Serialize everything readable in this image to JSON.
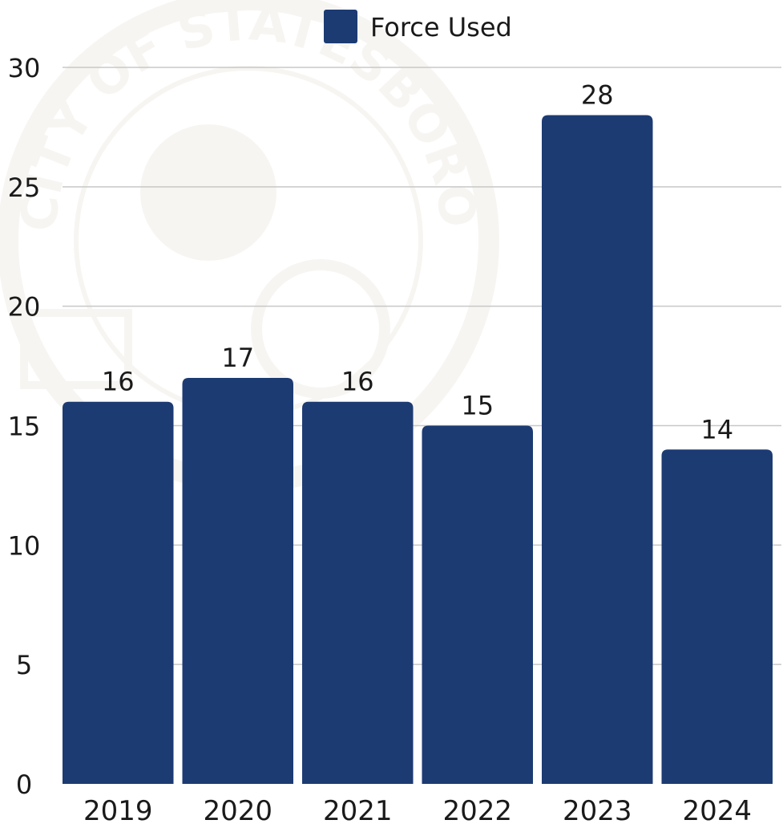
{
  "chart_data": {
    "type": "bar",
    "categories": [
      "2019",
      "2020",
      "2021",
      "2022",
      "2023",
      "2024"
    ],
    "series": [
      {
        "name": "Force Used",
        "values": [
          16,
          17,
          16,
          15,
          28,
          14
        ]
      }
    ],
    "ylim": [
      0,
      30
    ],
    "yticks": [
      0,
      5,
      10,
      15,
      20,
      25,
      30
    ],
    "title": "",
    "xlabel": "",
    "ylabel": "",
    "grid": true,
    "legend_position": "top-center",
    "data_labels": true,
    "colors": {
      "bar": "#1c3b73",
      "grid": "#c8c8c8",
      "text": "#1a1a1a",
      "watermark": "#b5a38a"
    }
  },
  "watermark": {
    "seal_text": "CITY OF STATESBORO · 1803"
  }
}
